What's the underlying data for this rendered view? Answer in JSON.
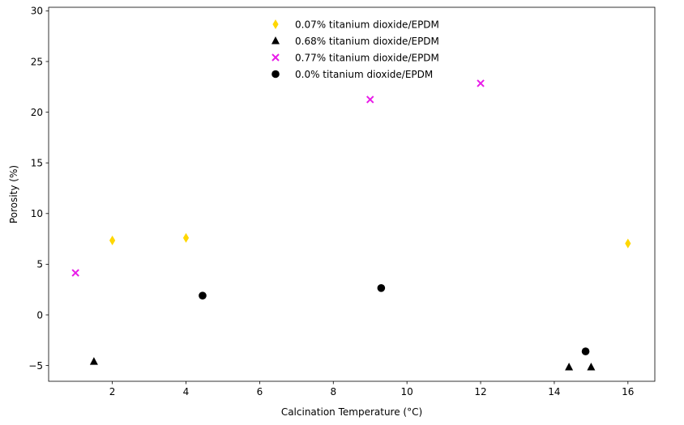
{
  "chart_data": {
    "type": "scatter",
    "title": "",
    "xlabel": "Calcination Temperature (°C)",
    "ylabel": "Porosity (%)",
    "xlim": [
      0.27,
      16.73
    ],
    "ylim": [
      -6.55,
      30.35
    ],
    "xticks": [
      2,
      4,
      6,
      8,
      10,
      12,
      14,
      16
    ],
    "yticks": [
      -5,
      0,
      5,
      10,
      15,
      20,
      25,
      30
    ],
    "grid": false,
    "legend_position": "upper center",
    "series": [
      {
        "name": "0.07% titanium dioxide/EPDM",
        "marker": "thin_diamond",
        "color": "#FFD700",
        "points": [
          [
            2.0,
            7.35
          ],
          [
            4.0,
            7.6
          ],
          [
            16.0,
            7.05
          ]
        ]
      },
      {
        "name": "0.68% titanium dioxide/EPDM",
        "marker": "triangle",
        "color": "#000000",
        "points": [
          [
            1.5,
            -4.6
          ],
          [
            14.4,
            -5.15
          ],
          [
            15.0,
            -5.15
          ]
        ]
      },
      {
        "name": "0.77% titanium dioxide/EPDM",
        "marker": "x",
        "color": "#E81BE8",
        "points": [
          [
            1.0,
            4.15
          ],
          [
            9.0,
            21.25
          ],
          [
            12.0,
            22.85
          ]
        ]
      },
      {
        "name": "0.0% titanium dioxide/EPDM",
        "marker": "circle",
        "color": "#000000",
        "points": [
          [
            4.45,
            1.9
          ],
          [
            9.3,
            2.65
          ],
          [
            14.85,
            -3.6
          ]
        ]
      }
    ]
  }
}
